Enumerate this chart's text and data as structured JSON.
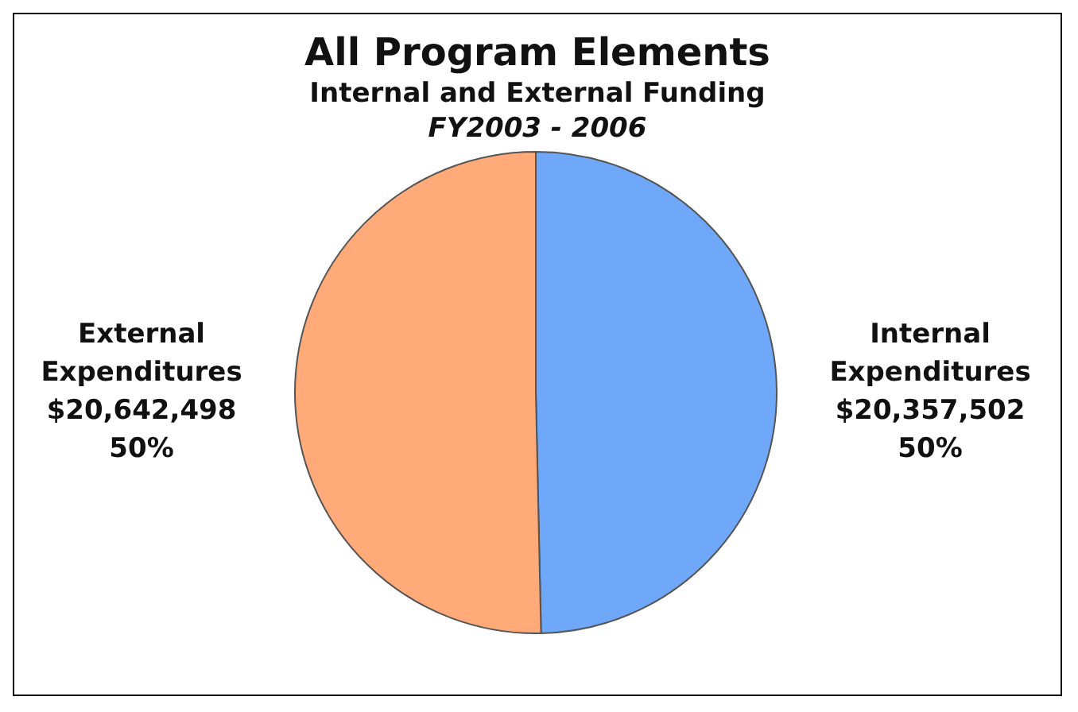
{
  "chart_data": {
    "type": "pie",
    "title": "All Program Elements",
    "subtitle": "Internal and External Funding",
    "annotations": [
      "FY2003 - 2006"
    ],
    "categories": [
      "Internal Expenditures",
      "External Expenditures"
    ],
    "values": [
      20357502,
      20642498
    ],
    "colors": [
      "#6fa8f8",
      "#ffaa78"
    ],
    "value_labels": [
      "$20,357,502\n50%",
      "$20,642,498\n50%"
    ],
    "legend": false
  }
}
